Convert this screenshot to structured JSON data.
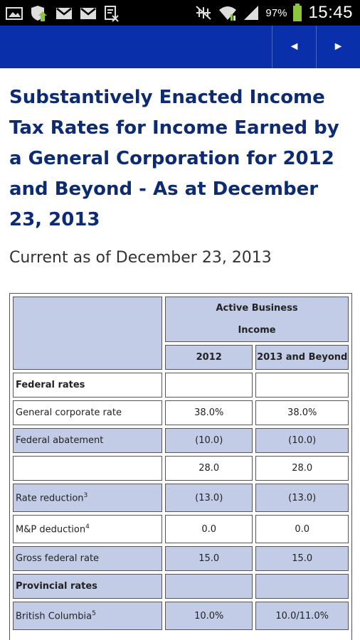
{
  "status_bar": {
    "battery_percent": "97%",
    "time": "15:45",
    "icons": [
      "image-icon",
      "shield-update-icon",
      "gmail-icon",
      "gmail-icon",
      "document-icon",
      "mute-icon",
      "wifi-icon",
      "signal-icon",
      "battery-icon"
    ]
  },
  "app_bar": {
    "prev_label": "◄",
    "next_label": "►",
    "color": "#0a2faa"
  },
  "page": {
    "title": "Substantively Enacted Income Tax Rates for Income Earned by a General Corporation for 2012 and Beyond - As at December 23, 2013",
    "subtitle": "Current as of December 23, 2013"
  },
  "table": {
    "header_group": "Active Business Income",
    "columns": [
      "2012",
      "2013 and Beyond"
    ],
    "rows": [
      {
        "label": "Federal rates",
        "sup": "",
        "v2012": "",
        "v2013": "",
        "bold": true
      },
      {
        "label": "General corporate rate",
        "sup": "",
        "v2012": "38.0%",
        "v2013": "38.0%"
      },
      {
        "label": "Federal abatement",
        "sup": "",
        "v2012": "(10.0)",
        "v2013": "(10.0)"
      },
      {
        "label": "",
        "sup": "",
        "v2012": "28.0",
        "v2013": "28.0"
      },
      {
        "label": "Rate reduction",
        "sup": "3",
        "v2012": "(13.0)",
        "v2013": "(13.0)"
      },
      {
        "label": "M&P deduction",
        "sup": "4",
        "v2012": "0.0",
        "v2013": "0.0"
      },
      {
        "label": "Gross federal rate",
        "sup": "",
        "v2012": "15.0",
        "v2013": "15.0"
      },
      {
        "label": "Provincial rates",
        "sup": "",
        "v2012": "",
        "v2013": "",
        "bold": true
      },
      {
        "label": "British Columbia",
        "sup": "5",
        "v2012": "10.0%",
        "v2013": "10.0/11.0%"
      }
    ]
  }
}
